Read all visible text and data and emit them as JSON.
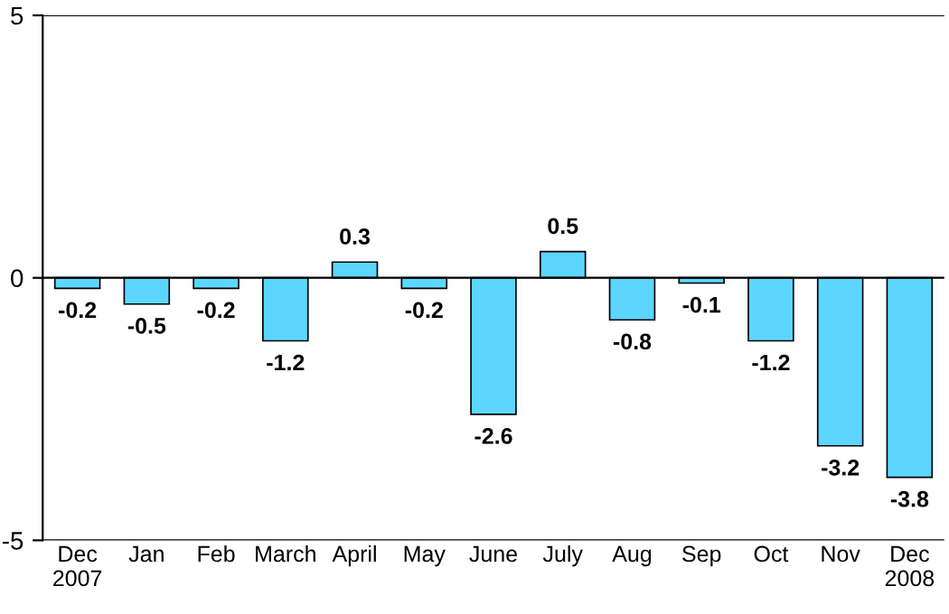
{
  "chart_data": {
    "type": "bar",
    "categories": [
      "Dec\n2007",
      "Jan",
      "Feb",
      "March",
      "April",
      "May",
      "June",
      "July",
      "Aug",
      "Sep",
      "Oct",
      "Nov",
      "Dec\n2008"
    ],
    "values": [
      -0.2,
      -0.5,
      -0.2,
      -1.2,
      0.3,
      -0.2,
      -2.6,
      0.5,
      -0.8,
      -0.1,
      -1.2,
      -3.2,
      -3.8
    ],
    "color": "#5cd6ff",
    "ylim": [
      -5,
      5
    ],
    "yticks": [
      -5,
      0,
      5
    ],
    "grid": "y",
    "data_labels": true
  }
}
